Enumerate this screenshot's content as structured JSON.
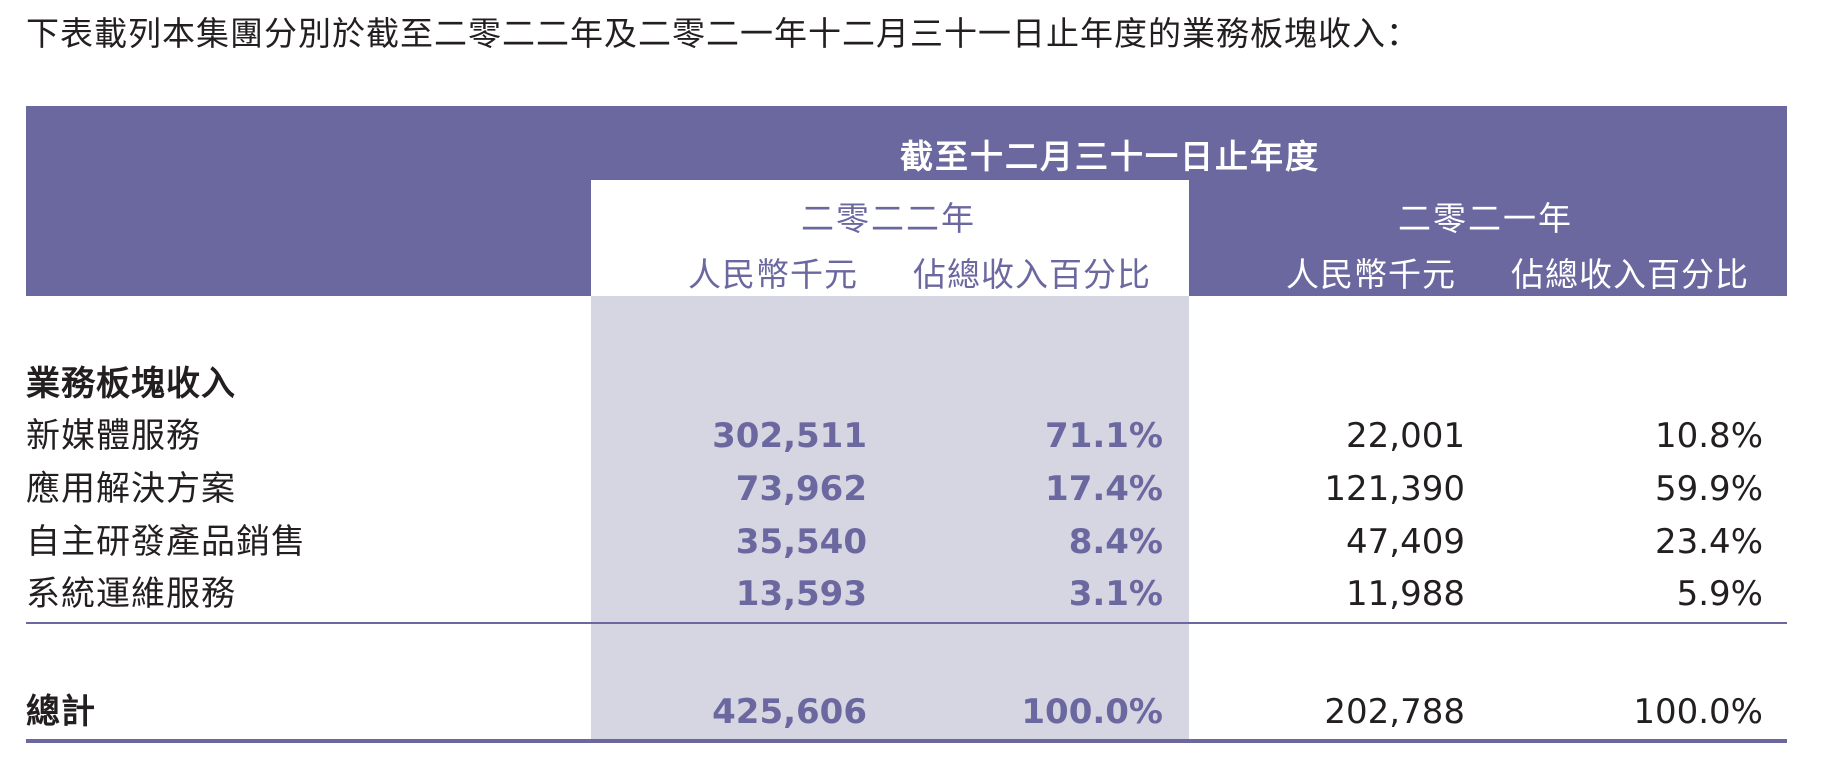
{
  "intro": "下表載列本集團分別於截至二零二二年及二零二一年十二月三十一日止年度的業務板塊收入：",
  "header": {
    "period": "截至十二月三十一日止年度",
    "year_2022": "二零二二年",
    "year_2021": "二零二一年",
    "col_rmb": "人民幣千元",
    "col_pct": "佔總收入百分比"
  },
  "section_title": "業務板塊收入",
  "rows": [
    {
      "label": "新媒體服務",
      "rmb_2022": "302,511",
      "pct_2022": "71.1%",
      "rmb_2021": "22,001",
      "pct_2021": "10.8%"
    },
    {
      "label": "應用解決方案",
      "rmb_2022": "73,962",
      "pct_2022": "17.4%",
      "rmb_2021": "121,390",
      "pct_2021": "59.9%"
    },
    {
      "label": "自主研發產品銷售",
      "rmb_2022": "35,540",
      "pct_2022": "8.4%",
      "rmb_2021": "47,409",
      "pct_2021": "23.4%"
    },
    {
      "label": "系統運維服務",
      "rmb_2022": "13,593",
      "pct_2022": "3.1%",
      "rmb_2021": "11,988",
      "pct_2021": "5.9%"
    }
  ],
  "total": {
    "label": "總計",
    "rmb_2022": "425,606",
    "pct_2022": "100.0%",
    "rmb_2021": "202,788",
    "pct_2021": "100.0%"
  },
  "colors": {
    "accent": "#6b68a0",
    "highlight": "#d6d6e2"
  }
}
